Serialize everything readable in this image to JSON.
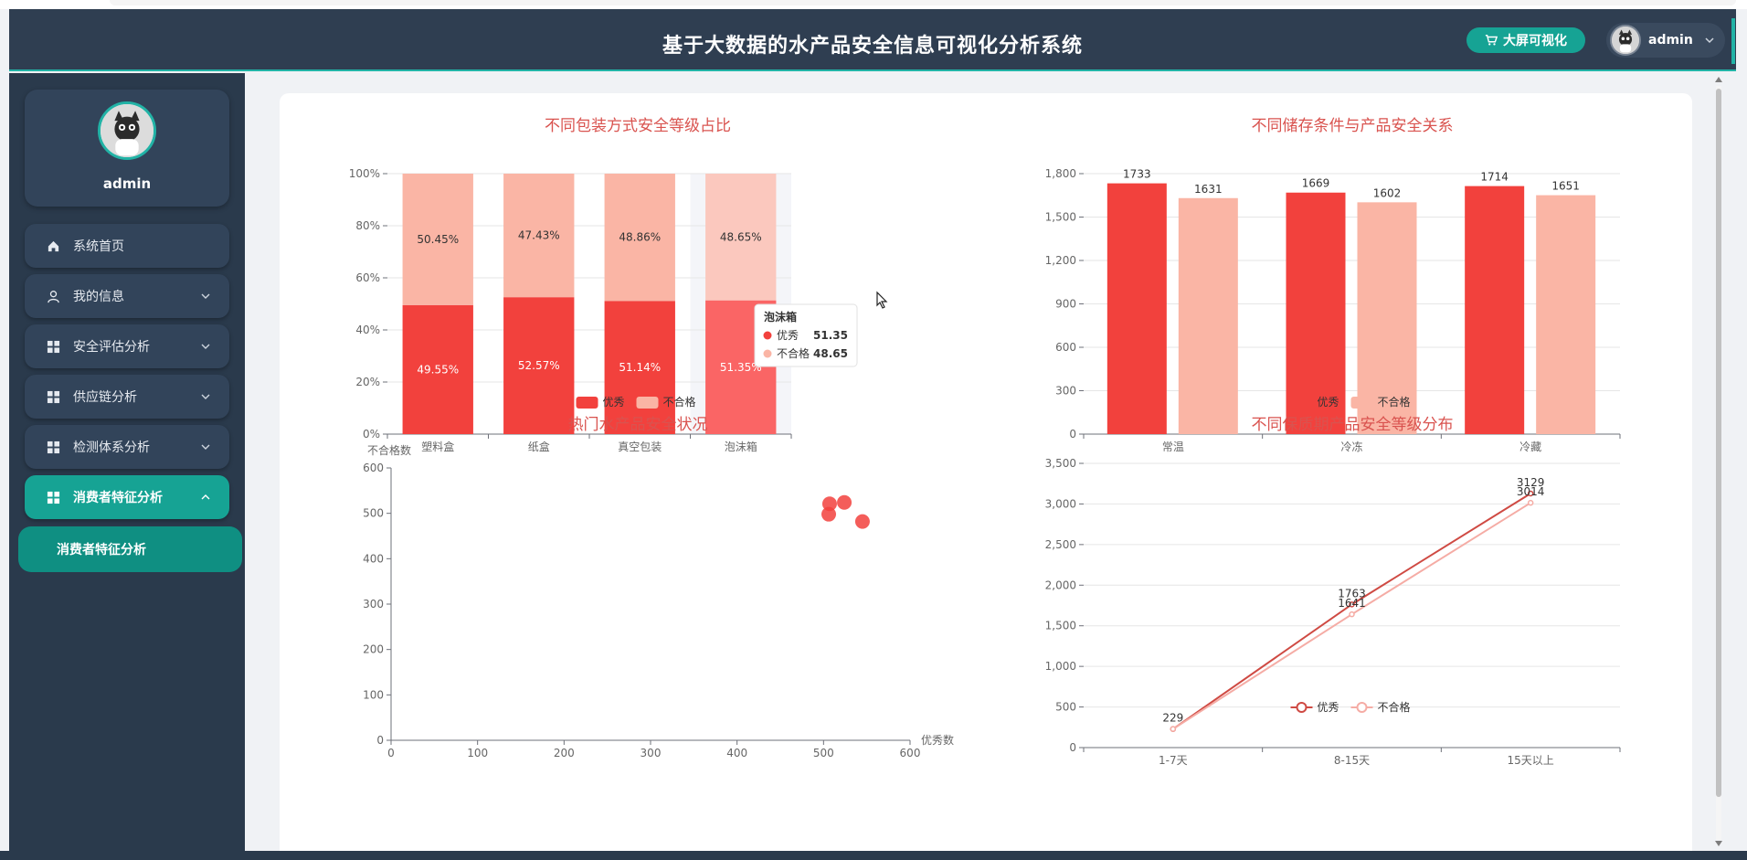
{
  "app": {
    "title": "基于大数据的水产品安全信息可视化分析系统",
    "bigscreen_label": "大屏可视化",
    "username": "admin"
  },
  "sidebar": {
    "profile_name": "admin",
    "items": [
      {
        "label": "系统首页",
        "icon": "home-icon"
      },
      {
        "label": "我的信息",
        "icon": "user-icon"
      },
      {
        "label": "安全评估分析",
        "icon": "grid-icon"
      },
      {
        "label": "供应链分析",
        "icon": "grid-icon"
      },
      {
        "label": "检测体系分析",
        "icon": "grid-icon"
      },
      {
        "label": "消费者特征分析",
        "icon": "grid-icon"
      }
    ],
    "submenu_label": "消费者特征分析"
  },
  "colors": {
    "excellent": "#f2413d",
    "fail": "#fab5a5",
    "excellent_hover": "#fa6565",
    "fail_hover": "#fbc8be",
    "line_excellent": "#cf4a43",
    "line_fail": "#f5aca5",
    "title": "#d9534f"
  },
  "tooltip": {
    "title": "泡沫箱",
    "rows": [
      {
        "label": "优秀",
        "value": "51.35"
      },
      {
        "label": "不合格",
        "value": "48.65"
      }
    ]
  },
  "chart_data": [
    {
      "type": "bar",
      "stacked": true,
      "title": "不同包装方式安全等级占比",
      "categories": [
        "塑料盒",
        "纸盒",
        "真空包装",
        "泡沫箱"
      ],
      "series": [
        {
          "name": "优秀",
          "values": [
            49.55,
            52.57,
            51.14,
            51.35
          ],
          "labels": [
            "49.55%",
            "52.57%",
            "51.14%",
            "51.35%"
          ]
        },
        {
          "name": "不合格",
          "values": [
            50.45,
            47.43,
            48.86,
            48.65
          ],
          "labels": [
            "50.45%",
            "47.43%",
            "48.86%",
            "48.65%"
          ]
        }
      ],
      "yticks": [
        "0%",
        "20%",
        "40%",
        "60%",
        "80%",
        "100%"
      ],
      "ylim": [
        0,
        100
      ],
      "legend": "bottom",
      "highlighted_category": "泡沫箱"
    },
    {
      "type": "bar",
      "title": "不同储存条件与产品安全关系",
      "categories": [
        "常温",
        "冷冻",
        "冷藏"
      ],
      "series": [
        {
          "name": "优秀",
          "values": [
            1733,
            1669,
            1714
          ]
        },
        {
          "name": "不合格",
          "values": [
            1631,
            1602,
            1651
          ]
        }
      ],
      "yticks": [
        "0",
        "300",
        "600",
        "900",
        "1,200",
        "1,500",
        "1,800"
      ],
      "ylim": [
        0,
        1800
      ],
      "legend": "bottom"
    },
    {
      "type": "scatter",
      "title": "热门水产品安全状况",
      "xlabel": "优秀数",
      "ylabel": "不合格数",
      "points": [
        [
          507,
          521
        ],
        [
          524,
          524
        ],
        [
          506,
          498
        ],
        [
          545,
          482
        ]
      ],
      "xticks": [
        "0",
        "100",
        "200",
        "300",
        "400",
        "500",
        "600"
      ],
      "yticks": [
        "0",
        "100",
        "200",
        "300",
        "400",
        "500",
        "600"
      ],
      "xlim": [
        0,
        600
      ],
      "ylim": [
        0,
        600
      ]
    },
    {
      "type": "line",
      "title": "不同保质期产品安全等级分布",
      "categories": [
        "1-7天",
        "8-15天",
        "15天以上"
      ],
      "series": [
        {
          "name": "优秀",
          "values": [
            229,
            1763,
            3129
          ]
        },
        {
          "name": "不合格",
          "values": [
            229,
            1641,
            3014
          ]
        }
      ],
      "yticks": [
        "0",
        "500",
        "1,000",
        "1,500",
        "2,000",
        "2,500",
        "3,000",
        "3,500"
      ],
      "ylim": [
        0,
        3500
      ],
      "legend": "bottom"
    }
  ]
}
